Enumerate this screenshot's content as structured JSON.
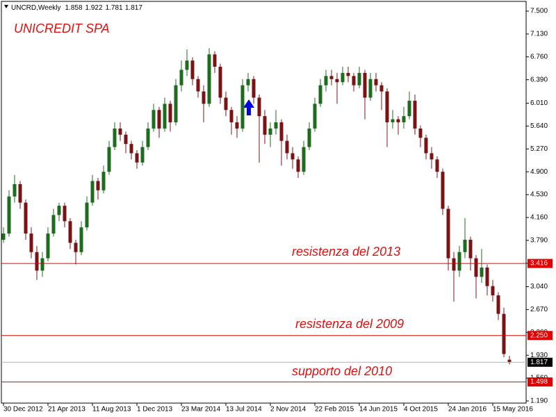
{
  "chart_data": {
    "type": "candlestick",
    "symbol": "UNCRD,Weekly",
    "title": "UNICREDIT SPA",
    "annotations": [
      "resistenza del 2013",
      "resistenza del 2009",
      "supporto del 2010"
    ],
    "up_color": "#1d6b1d",
    "down_color": "#7a1414",
    "categories": [
      "30 Dec 2012",
      null,
      null,
      null,
      null,
      null,
      null,
      null,
      "21 Apr 2013",
      null,
      null,
      null,
      null,
      null,
      null,
      null,
      "11 Aug 2013",
      null,
      null,
      null,
      null,
      null,
      null,
      null,
      "1 Dec 2013",
      null,
      null,
      null,
      null,
      null,
      null,
      null,
      "23 Mar 2014",
      null,
      null,
      null,
      null,
      null,
      null,
      null,
      "13 Jul 2014",
      null,
      null,
      null,
      null,
      null,
      null,
      null,
      "2 Nov 2014",
      null,
      null,
      null,
      null,
      null,
      null,
      null,
      "22 Feb 2015",
      null,
      null,
      null,
      null,
      null,
      null,
      null,
      "14 Jun 2015",
      null,
      null,
      null,
      null,
      null,
      null,
      null,
      "4 Oct 2015",
      null,
      null,
      null,
      null,
      null,
      null,
      null,
      "24 Jan 2016",
      null,
      null,
      null,
      null,
      null,
      null,
      null,
      "15 May 2016",
      null,
      null,
      null
    ],
    "ohlc": [
      [
        3.8,
        4.0,
        3.75,
        3.9
      ],
      [
        3.9,
        4.6,
        3.85,
        4.5
      ],
      [
        4.5,
        4.85,
        4.4,
        4.7
      ],
      [
        4.7,
        4.75,
        4.3,
        4.4
      ],
      [
        4.4,
        4.45,
        3.8,
        3.9
      ],
      [
        3.9,
        4.0,
        3.5,
        3.6
      ],
      [
        3.6,
        3.7,
        3.15,
        3.3
      ],
      [
        3.3,
        3.6,
        3.2,
        3.5
      ],
      [
        3.5,
        4.0,
        3.45,
        3.9
      ],
      [
        3.9,
        4.3,
        3.85,
        4.2
      ],
      [
        4.2,
        4.4,
        4.1,
        4.35
      ],
      [
        4.35,
        4.4,
        4.0,
        4.1
      ],
      [
        4.1,
        4.15,
        3.65,
        3.75
      ],
      [
        3.75,
        3.8,
        3.4,
        3.6
      ],
      [
        3.6,
        4.1,
        3.55,
        4.0
      ],
      [
        4.0,
        4.5,
        3.95,
        4.4
      ],
      [
        4.4,
        4.85,
        4.35,
        4.75
      ],
      [
        4.75,
        4.8,
        4.45,
        4.6
      ],
      [
        4.6,
        5.0,
        4.55,
        4.9
      ],
      [
        4.9,
        5.4,
        4.85,
        5.3
      ],
      [
        5.3,
        5.7,
        5.25,
        5.6
      ],
      [
        5.6,
        5.7,
        5.4,
        5.5
      ],
      [
        5.5,
        5.55,
        5.2,
        5.35
      ],
      [
        5.35,
        5.4,
        5.1,
        5.2
      ],
      [
        5.2,
        5.25,
        4.95,
        5.05
      ],
      [
        5.05,
        5.4,
        5.0,
        5.3
      ],
      [
        5.3,
        5.7,
        5.25,
        5.6
      ],
      [
        5.6,
        6.0,
        5.55,
        5.9
      ],
      [
        5.9,
        5.95,
        5.45,
        5.6
      ],
      [
        5.6,
        6.1,
        5.55,
        6.0
      ],
      [
        6.0,
        6.05,
        5.55,
        5.7
      ],
      [
        5.7,
        6.4,
        5.65,
        6.3
      ],
      [
        6.3,
        6.7,
        6.2,
        6.55
      ],
      [
        6.55,
        6.88,
        6.45,
        6.7
      ],
      [
        6.7,
        6.75,
        6.3,
        6.4
      ],
      [
        6.4,
        6.45,
        6.1,
        6.2
      ],
      [
        6.2,
        6.3,
        5.7,
        6.0
      ],
      [
        6.0,
        6.9,
        5.95,
        6.8
      ],
      [
        6.8,
        6.85,
        6.5,
        6.6
      ],
      [
        6.6,
        6.65,
        6.0,
        6.1
      ],
      [
        6.1,
        6.2,
        5.8,
        5.9
      ],
      [
        5.9,
        5.95,
        5.5,
        5.7
      ],
      [
        5.7,
        5.8,
        5.45,
        5.6
      ],
      [
        5.6,
        6.4,
        5.55,
        6.3
      ],
      [
        6.3,
        6.5,
        6.2,
        6.4
      ],
      [
        6.4,
        6.45,
        6.0,
        6.1
      ],
      [
        6.1,
        6.15,
        5.05,
        5.8
      ],
      [
        5.8,
        5.9,
        5.35,
        5.5
      ],
      [
        5.5,
        5.7,
        5.3,
        5.6
      ],
      [
        5.6,
        5.9,
        5.5,
        5.7
      ],
      [
        5.7,
        5.75,
        5.0,
        5.4
      ],
      [
        5.4,
        5.5,
        5.1,
        5.2
      ],
      [
        5.2,
        5.3,
        4.95,
        5.1
      ],
      [
        5.1,
        5.15,
        4.8,
        4.9
      ],
      [
        4.9,
        5.4,
        4.85,
        5.3
      ],
      [
        5.3,
        5.7,
        5.25,
        5.6
      ],
      [
        5.6,
        6.1,
        5.55,
        6.0
      ],
      [
        6.0,
        6.4,
        5.95,
        6.3
      ],
      [
        6.3,
        6.55,
        6.2,
        6.45
      ],
      [
        6.45,
        6.55,
        6.3,
        6.4
      ],
      [
        6.4,
        6.5,
        6.0,
        6.35
      ],
      [
        6.35,
        6.6,
        6.3,
        6.5
      ],
      [
        6.5,
        6.6,
        6.35,
        6.45
      ],
      [
        6.45,
        6.5,
        6.2,
        6.3
      ],
      [
        6.3,
        6.6,
        6.25,
        6.5
      ],
      [
        6.5,
        6.55,
        5.75,
        6.1
      ],
      [
        6.1,
        6.5,
        6.05,
        6.4
      ],
      [
        6.4,
        6.5,
        6.2,
        6.3
      ],
      [
        6.3,
        6.35,
        5.9,
        6.2
      ],
      [
        6.2,
        6.25,
        5.3,
        5.7
      ],
      [
        5.7,
        5.9,
        5.6,
        5.75
      ],
      [
        5.75,
        5.8,
        5.5,
        5.7
      ],
      [
        5.7,
        5.95,
        5.6,
        5.8
      ],
      [
        5.8,
        6.2,
        5.75,
        6.05
      ],
      [
        6.05,
        6.15,
        5.5,
        5.6
      ],
      [
        5.6,
        5.65,
        5.3,
        5.45
      ],
      [
        5.45,
        5.5,
        5.1,
        5.2
      ],
      [
        5.2,
        5.3,
        4.95,
        5.1
      ],
      [
        5.1,
        5.15,
        4.8,
        4.9
      ],
      [
        4.9,
        4.95,
        4.2,
        4.3
      ],
      [
        4.3,
        4.35,
        3.3,
        3.5
      ],
      [
        3.5,
        3.6,
        2.8,
        3.3
      ],
      [
        3.3,
        3.7,
        3.2,
        3.6
      ],
      [
        3.6,
        4.15,
        3.5,
        3.8
      ],
      [
        3.8,
        3.85,
        3.3,
        3.5
      ],
      [
        3.5,
        3.55,
        2.85,
        3.2
      ],
      [
        3.2,
        3.65,
        3.1,
        3.35
      ],
      [
        3.35,
        3.4,
        2.9,
        3.05
      ],
      [
        3.05,
        3.15,
        2.8,
        2.9
      ],
      [
        2.9,
        2.95,
        2.5,
        2.6
      ],
      [
        2.6,
        2.7,
        1.9,
        1.95
      ],
      [
        1.858,
        1.922,
        1.781,
        1.817
      ]
    ],
    "ylim": [
      1.156,
      7.68
    ],
    "yticks": [
      {
        "value": 7.5,
        "label": "7.500"
      },
      {
        "value": 7.13,
        "label": "7.130"
      },
      {
        "value": 6.76,
        "label": "6.760"
      },
      {
        "value": 6.39,
        "label": "6.390"
      },
      {
        "value": 6.01,
        "label": "6.010"
      },
      {
        "value": 5.64,
        "label": "5.640"
      },
      {
        "value": 5.27,
        "label": "5.270"
      },
      {
        "value": 4.9,
        "label": "4.900"
      },
      {
        "value": 4.53,
        "label": "4.530"
      },
      {
        "value": 4.16,
        "label": "4.160"
      },
      {
        "value": 3.79,
        "label": "3.790"
      },
      {
        "value": 3.42,
        "label": "3.420"
      },
      {
        "value": 3.04,
        "label": "3.040"
      },
      {
        "value": 2.67,
        "label": "2.670"
      },
      {
        "value": 2.3,
        "label": "2.300"
      },
      {
        "value": 1.93,
        "label": "1.930"
      },
      {
        "value": 1.56,
        "label": "1.560"
      },
      {
        "value": 1.19,
        "label": "1.190"
      }
    ],
    "levels": [
      {
        "value": 3.416,
        "label": "3.416",
        "color": "#e00000"
      },
      {
        "value": 2.25,
        "label": "2.250",
        "color": "#e00000"
      },
      {
        "value": 1.498,
        "label": "1.498",
        "color": "#e00000"
      },
      {
        "value": 1.817,
        "label": "1.817",
        "color": "#b0b0b0"
      }
    ]
  }
}
